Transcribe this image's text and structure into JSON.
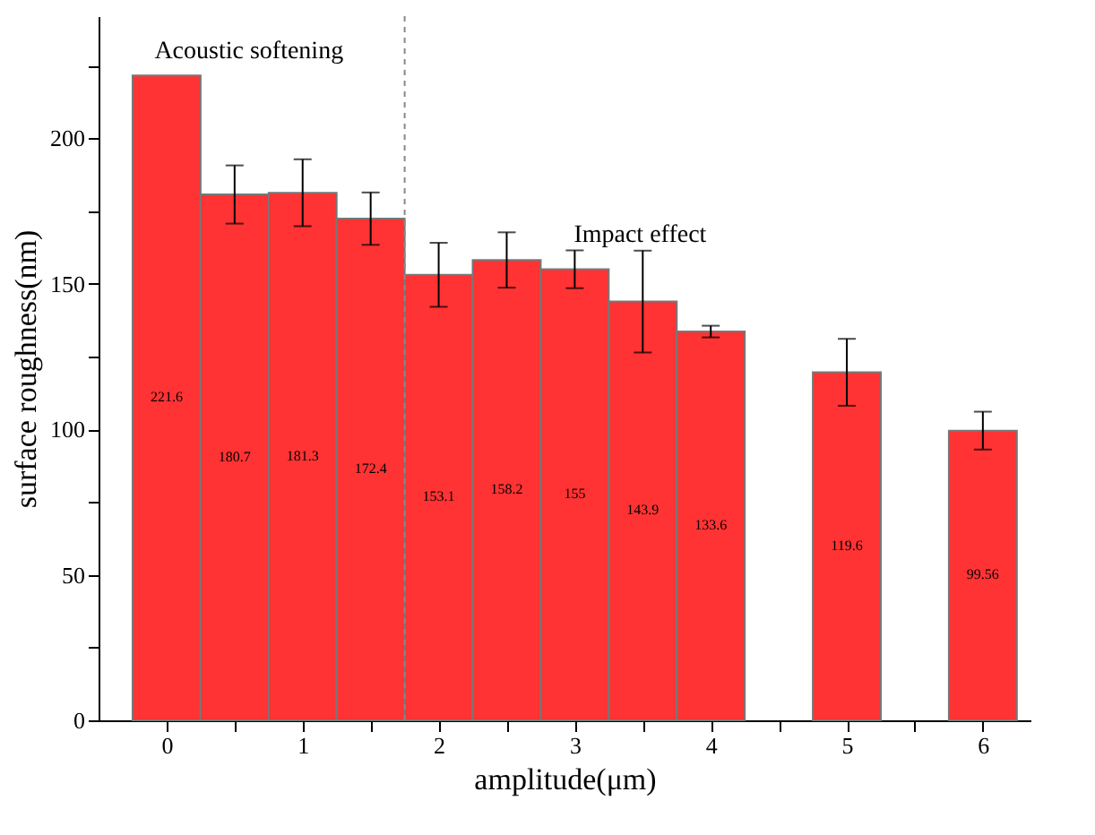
{
  "chart_data": {
    "type": "bar",
    "x": [
      0,
      0.5,
      1,
      1.5,
      2,
      2.5,
      3,
      3.5,
      4,
      5,
      6
    ],
    "values": [
      221.6,
      180.7,
      181.3,
      172.4,
      153.1,
      158.2,
      155,
      143.9,
      133.6,
      119.6,
      99.56
    ],
    "errors": [
      null,
      10,
      11.5,
      9,
      11,
      9.5,
      6.5,
      17.5,
      2,
      11.5,
      6.5
    ],
    "color": "#ff3333",
    "data_labels": true,
    "xlabel": "amplitude(μm)",
    "ylabel": "surface roughness(nm)",
    "xlim": [
      -0.5,
      6.35
    ],
    "ylim": [
      0,
      242
    ],
    "xticks": [
      0,
      {
        "value": 0.5,
        "label": null
      },
      1,
      {
        "value": 1.5,
        "label": null
      },
      2,
      {
        "value": 2.5,
        "label": null
      },
      3,
      {
        "value": 3.5,
        "label": null
      },
      4,
      {
        "value": 4.5,
        "label": null
      },
      5,
      {
        "value": 5.5,
        "label": null
      },
      6
    ],
    "yticks": [
      0,
      {
        "value": 25,
        "label": null
      },
      50,
      {
        "value": 75,
        "label": null
      },
      100,
      {
        "value": 125,
        "label": null
      },
      150,
      {
        "value": 175,
        "label": null
      },
      200,
      {
        "value": 225,
        "label": null
      }
    ],
    "ref_lines": [
      {
        "axis": "x",
        "value": 1.75,
        "color": "#888888",
        "line_style": "dashed"
      }
    ],
    "annotations": [
      "Acoustic softening",
      "Impact effect"
    ],
    "grid": false
  }
}
